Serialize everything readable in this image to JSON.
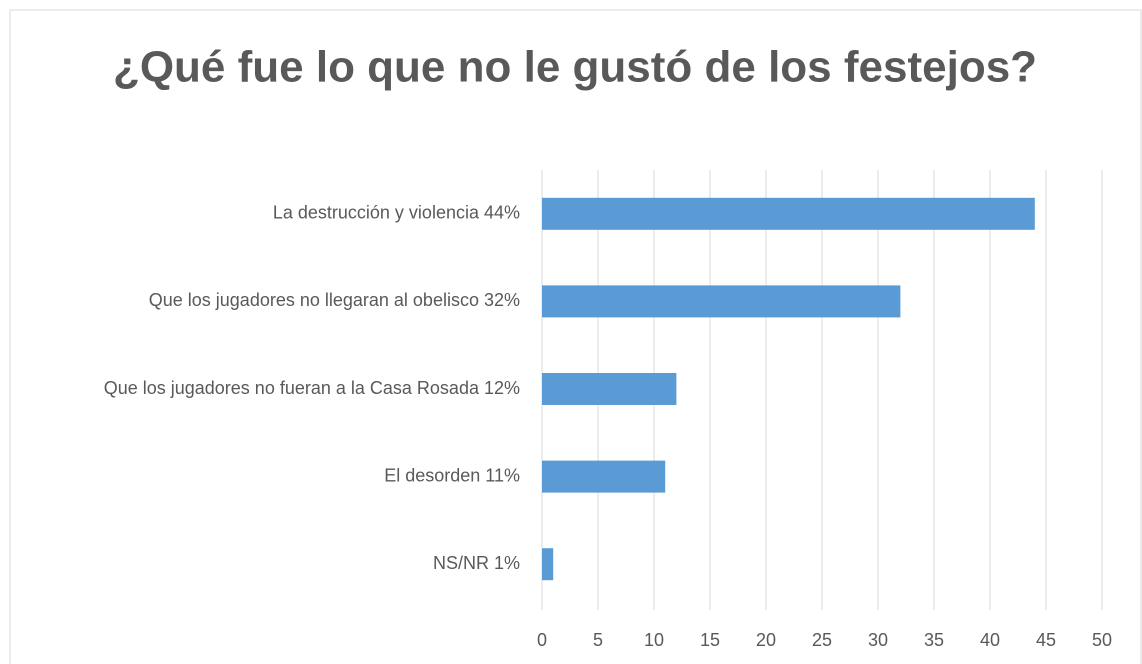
{
  "chart_data": {
    "type": "bar",
    "orientation": "horizontal",
    "title": "¿Qué fue lo que no le gustó de los festejos?",
    "categories": [
      "La destrucción y violencia  44%",
      "Que los jugadores no llegaran al obelisco  32%",
      "Que los jugadores no fueran a la Casa Rosada  12%",
      "El desorden 11%",
      "NS/NR 1%"
    ],
    "values": [
      44,
      32,
      12,
      11,
      1
    ],
    "color": "#5b9bd5",
    "xlim": [
      0,
      50
    ],
    "xticks": [
      0,
      5,
      10,
      15,
      20,
      25,
      30,
      35,
      40,
      45,
      50
    ],
    "grid": true
  }
}
